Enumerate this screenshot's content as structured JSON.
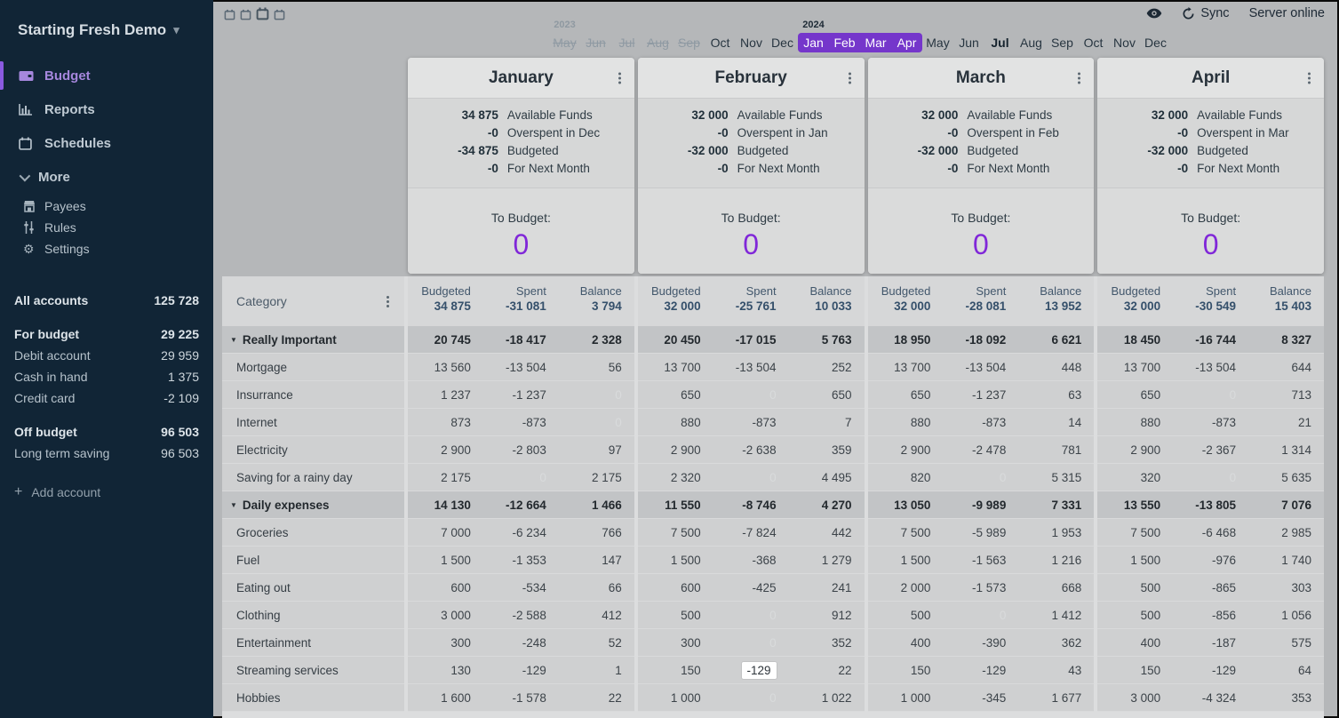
{
  "colors": {
    "accent": "#7536cb",
    "to_budget": "#8027d8",
    "sidebar_bg": "#112536"
  },
  "sidebar": {
    "title": "Starting Fresh Demo",
    "nav": [
      {
        "label": "Budget",
        "icon": "wallet-icon",
        "active": true
      },
      {
        "label": "Reports",
        "icon": "reports-icon",
        "active": false
      },
      {
        "label": "Schedules",
        "icon": "calendar-icon",
        "active": false
      }
    ],
    "more_label": "More",
    "sub_nav": [
      {
        "label": "Payees",
        "icon": "store-icon"
      },
      {
        "label": "Rules",
        "icon": "sliders-icon"
      },
      {
        "label": "Settings",
        "icon": "gear-icon"
      }
    ],
    "accounts": [
      {
        "label": "All accounts",
        "value": "125 728",
        "bold": true,
        "gap": "lg"
      },
      {
        "label": "For budget",
        "value": "29 225",
        "bold": true,
        "gap": "lg"
      },
      {
        "label": "Debit account",
        "value": "29 959",
        "bold": false,
        "gap": ""
      },
      {
        "label": "Cash in hand",
        "value": "1 375",
        "bold": false,
        "gap": ""
      },
      {
        "label": "Credit card",
        "value": "-2 109",
        "bold": false,
        "gap": ""
      },
      {
        "label": "Off budget",
        "value": "96 503",
        "bold": true,
        "gap": "lg"
      },
      {
        "label": "Long term saving",
        "value": "96 503",
        "bold": false,
        "gap": ""
      }
    ],
    "add_account_label": "Add account"
  },
  "topbar": {
    "sync_label": "Sync",
    "server_status": "Server online"
  },
  "timeline": {
    "months": [
      {
        "label": "May",
        "year": "2023",
        "year_faded": true,
        "state": "dis"
      },
      {
        "label": "Jun",
        "state": "dis"
      },
      {
        "label": "Jul",
        "state": "dis"
      },
      {
        "label": "Aug",
        "state": "dis"
      },
      {
        "label": "Sep",
        "state": "dis"
      },
      {
        "label": "Oct",
        "state": ""
      },
      {
        "label": "Nov",
        "state": ""
      },
      {
        "label": "Dec",
        "state": ""
      },
      {
        "label": "Jan",
        "year": "2024",
        "year_faded": false,
        "state": "sel sel-first"
      },
      {
        "label": "Feb",
        "state": "sel"
      },
      {
        "label": "Mar",
        "state": "sel"
      },
      {
        "label": "Apr",
        "state": "sel sel-last"
      },
      {
        "label": "May",
        "state": ""
      },
      {
        "label": "Jun",
        "state": ""
      },
      {
        "label": "Jul",
        "state": "cur"
      },
      {
        "label": "Aug",
        "state": ""
      },
      {
        "label": "Sep",
        "state": ""
      },
      {
        "label": "Oct",
        "state": ""
      },
      {
        "label": "Nov",
        "state": ""
      },
      {
        "label": "Dec",
        "state": ""
      }
    ]
  },
  "cards_shared": {
    "to_budget_label": "To Budget:"
  },
  "months": [
    {
      "name": "January",
      "summary": [
        {
          "v": "34 875",
          "l": "Available Funds"
        },
        {
          "v": "-0",
          "l": "Overspent in Dec"
        },
        {
          "v": "-34 875",
          "l": "Budgeted"
        },
        {
          "v": "-0",
          "l": "For Next Month"
        }
      ],
      "to_budget": "0",
      "totals": [
        "34 875",
        "-31 081",
        "3 794"
      ]
    },
    {
      "name": "February",
      "summary": [
        {
          "v": "32 000",
          "l": "Available Funds"
        },
        {
          "v": "-0",
          "l": "Overspent in Jan"
        },
        {
          "v": "-32 000",
          "l": "Budgeted"
        },
        {
          "v": "-0",
          "l": "For Next Month"
        }
      ],
      "to_budget": "0",
      "totals": [
        "32 000",
        "-25 761",
        "10 033"
      ]
    },
    {
      "name": "March",
      "summary": [
        {
          "v": "32 000",
          "l": "Available Funds"
        },
        {
          "v": "-0",
          "l": "Overspent in Feb"
        },
        {
          "v": "-32 000",
          "l": "Budgeted"
        },
        {
          "v": "-0",
          "l": "For Next Month"
        }
      ],
      "to_budget": "0",
      "totals": [
        "32 000",
        "-28 081",
        "13 952"
      ]
    },
    {
      "name": "April",
      "summary": [
        {
          "v": "32 000",
          "l": "Available Funds"
        },
        {
          "v": "-0",
          "l": "Overspent in Mar"
        },
        {
          "v": "-32 000",
          "l": "Budgeted"
        },
        {
          "v": "-0",
          "l": "For Next Month"
        }
      ],
      "to_budget": "0",
      "totals": [
        "32 000",
        "-30 549",
        "15 403"
      ]
    }
  ],
  "table": {
    "category_header": "Category",
    "col_headers": [
      "Budgeted",
      "Spent",
      "Balance"
    ],
    "editing": {
      "row": 12,
      "month": 1,
      "col": 1
    },
    "rows": [
      {
        "type": "group",
        "name": "Really Important",
        "cells": [
          [
            "20 745",
            "-18 417",
            "2 328"
          ],
          [
            "20 450",
            "-17 015",
            "5 763"
          ],
          [
            "18 950",
            "-18 092",
            "6 621"
          ],
          [
            "18 450",
            "-16 744",
            "8 327"
          ]
        ]
      },
      {
        "type": "category",
        "name": "Mortgage",
        "cells": [
          [
            "13 560",
            "-13 504",
            "56"
          ],
          [
            "13 700",
            "-13 504",
            "252"
          ],
          [
            "13 700",
            "-13 504",
            "448"
          ],
          [
            "13 700",
            "-13 504",
            "644"
          ]
        ]
      },
      {
        "type": "category",
        "name": "Insurrance",
        "cells": [
          [
            "1 237",
            "-1 237",
            "0"
          ],
          [
            "650",
            "0",
            "650"
          ],
          [
            "650",
            "-1 237",
            "63"
          ],
          [
            "650",
            "0",
            "713"
          ]
        ]
      },
      {
        "type": "category",
        "name": "Internet",
        "cells": [
          [
            "873",
            "-873",
            "0"
          ],
          [
            "880",
            "-873",
            "7"
          ],
          [
            "880",
            "-873",
            "14"
          ],
          [
            "880",
            "-873",
            "21"
          ]
        ]
      },
      {
        "type": "category",
        "name": "Electricity",
        "cells": [
          [
            "2 900",
            "-2 803",
            "97"
          ],
          [
            "2 900",
            "-2 638",
            "359"
          ],
          [
            "2 900",
            "-2 478",
            "781"
          ],
          [
            "2 900",
            "-2 367",
            "1 314"
          ]
        ]
      },
      {
        "type": "category",
        "name": "Saving for a rainy day",
        "cells": [
          [
            "2 175",
            "0",
            "2 175"
          ],
          [
            "2 320",
            "0",
            "4 495"
          ],
          [
            "820",
            "0",
            "5 315"
          ],
          [
            "320",
            "0",
            "5 635"
          ]
        ]
      },
      {
        "type": "group",
        "name": "Daily expenses",
        "cells": [
          [
            "14 130",
            "-12 664",
            "1 466"
          ],
          [
            "11 550",
            "-8 746",
            "4 270"
          ],
          [
            "13 050",
            "-9 989",
            "7 331"
          ],
          [
            "13 550",
            "-13 805",
            "7 076"
          ]
        ]
      },
      {
        "type": "category",
        "name": "Groceries",
        "cells": [
          [
            "7 000",
            "-6 234",
            "766"
          ],
          [
            "7 500",
            "-7 824",
            "442"
          ],
          [
            "7 500",
            "-5 989",
            "1 953"
          ],
          [
            "7 500",
            "-6 468",
            "2 985"
          ]
        ]
      },
      {
        "type": "category",
        "name": "Fuel",
        "cells": [
          [
            "1 500",
            "-1 353",
            "147"
          ],
          [
            "1 500",
            "-368",
            "1 279"
          ],
          [
            "1 500",
            "-1 563",
            "1 216"
          ],
          [
            "1 500",
            "-976",
            "1 740"
          ]
        ]
      },
      {
        "type": "category",
        "name": "Eating out",
        "cells": [
          [
            "600",
            "-534",
            "66"
          ],
          [
            "600",
            "-425",
            "241"
          ],
          [
            "2 000",
            "-1 573",
            "668"
          ],
          [
            "500",
            "-865",
            "303"
          ]
        ]
      },
      {
        "type": "category",
        "name": "Clothing",
        "cells": [
          [
            "3 000",
            "-2 588",
            "412"
          ],
          [
            "500",
            "0",
            "912"
          ],
          [
            "500",
            "0",
            "1 412"
          ],
          [
            "500",
            "-856",
            "1 056"
          ]
        ]
      },
      {
        "type": "category",
        "name": "Entertainment",
        "cells": [
          [
            "300",
            "-248",
            "52"
          ],
          [
            "300",
            "0",
            "352"
          ],
          [
            "400",
            "-390",
            "362"
          ],
          [
            "400",
            "-187",
            "575"
          ]
        ]
      },
      {
        "type": "category",
        "name": "Streaming services",
        "cells": [
          [
            "130",
            "-129",
            "1"
          ],
          [
            "150",
            "-129",
            "22"
          ],
          [
            "150",
            "-129",
            "43"
          ],
          [
            "150",
            "-129",
            "64"
          ]
        ]
      },
      {
        "type": "category",
        "name": "Hobbies",
        "cells": [
          [
            "1 600",
            "-1 578",
            "22"
          ],
          [
            "1 000",
            "0",
            "1 022"
          ],
          [
            "1 000",
            "-345",
            "1 677"
          ],
          [
            "3 000",
            "-4 324",
            "353"
          ]
        ]
      }
    ]
  }
}
